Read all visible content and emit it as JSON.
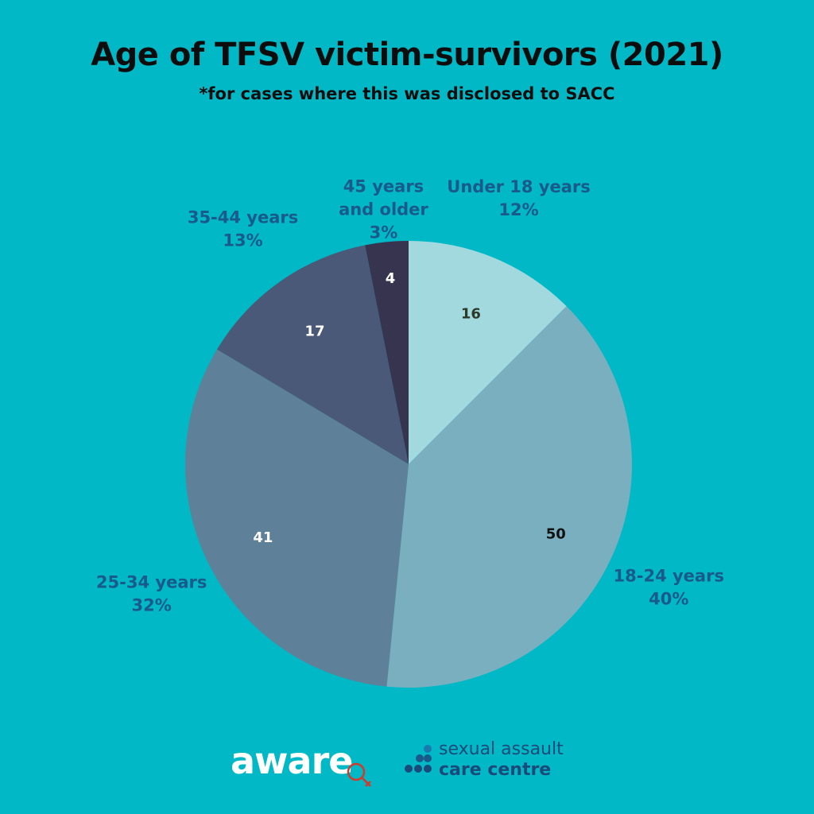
{
  "chart_data": {
    "type": "pie",
    "title": "Age of TFSV victim-survivors (2021)",
    "subtitle": "*for cases where this was disclosed to SACC",
    "slices": [
      {
        "label": [
          "Under 18 years"
        ],
        "value": 16,
        "percent": "12%",
        "color": "#a1d9de",
        "value_color": "#2d3a2a"
      },
      {
        "label": [
          "18-24 years"
        ],
        "value": 50,
        "percent": "40%",
        "color": "#7aafbf",
        "value_color": "#111111"
      },
      {
        "label": [
          "25-34 years"
        ],
        "value": 41,
        "percent": "32%",
        "color": "#5e8199",
        "value_color": "#ffffff"
      },
      {
        "label": [
          "35-44 years"
        ],
        "value": 17,
        "percent": "13%",
        "color": "#4a5977",
        "value_color": "#ffffff"
      },
      {
        "label": [
          "45 years",
          "and older"
        ],
        "value": 4,
        "percent": "3%",
        "color": "#36344f",
        "value_color": "#ffffff"
      }
    ],
    "label_color": "#1a5a8a",
    "start": "12 o'clock, clockwise"
  },
  "logos": {
    "aware": "aware",
    "sacc_line1": "sexual assault",
    "sacc_line2": "care centre"
  }
}
